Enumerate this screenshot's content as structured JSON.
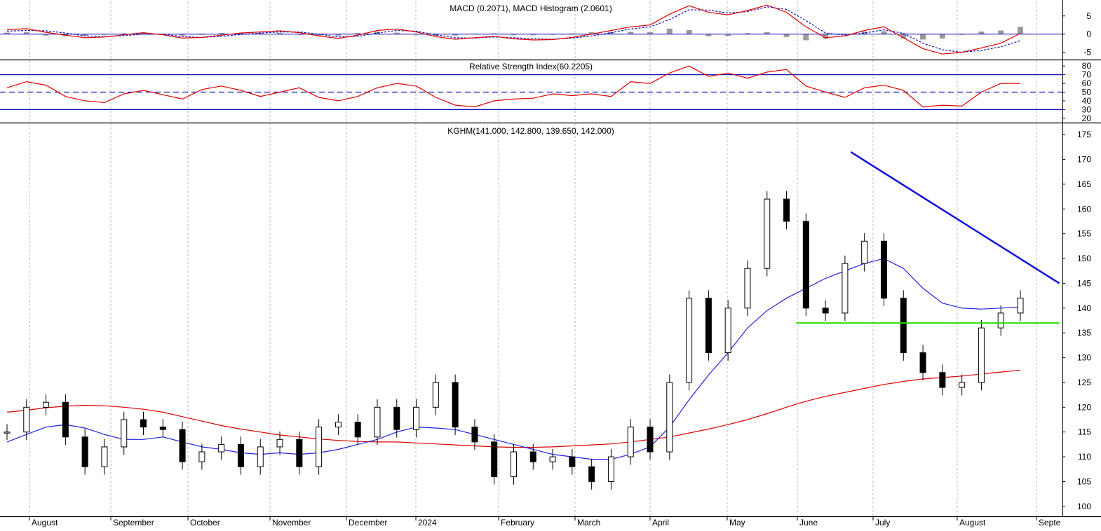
{
  "colors": {
    "background": "#ffffff",
    "frame": "#000000",
    "grid": "#b8b8b8",
    "bull_candle": "#ffffff",
    "bear_candle": "#000000",
    "sma_long": "#e00000",
    "sma_mid": "#2020e0",
    "downtrend_line": "#1010e0",
    "support_line": "#22dd00",
    "rsi_line": "#e00000",
    "rsi_levels": "#1010c0",
    "macd_line": "#e00000",
    "signal_line": "#1010c0",
    "histogram": "#999999"
  },
  "chart_data": [
    {
      "type": "line",
      "panel": "macd",
      "title": "MACD (0.2071), MACD Histogram (2.0601)",
      "y_ticks": [
        "5",
        "0",
        "-5"
      ],
      "ylim": [
        -7,
        9
      ],
      "series": [
        {
          "values": [
            1.2,
            1.5,
            0.5,
            -0.3,
            -1.0,
            -0.8,
            -0.2,
            0.4,
            -0.2,
            -1.1,
            -0.9,
            -0.3,
            0.3,
            0.6,
            0.9,
            0.4,
            -0.5,
            -1.2,
            -0.3,
            1.0,
            1.4,
            0.6,
            -0.7,
            -1.4,
            -1.0,
            -0.6,
            -1.3,
            -1.6,
            -1.5,
            -0.9,
            0.0,
            1.0,
            2.0,
            2.5,
            5.5,
            7.8,
            6.0,
            5.3,
            6.5,
            8.0,
            6.0,
            2.0,
            -1.0,
            -0.5,
            1.0,
            2.0,
            -1.0,
            -4.0,
            -5.5,
            -5.0,
            -3.8,
            -2.5,
            0.2
          ]
        },
        {
          "values": [
            0.8,
            1.0,
            0.9,
            0.3,
            -0.5,
            -0.7,
            -0.4,
            0.0,
            0.0,
            -0.7,
            -0.9,
            -0.6,
            -0.1,
            0.3,
            0.6,
            0.6,
            0.0,
            -0.8,
            -0.6,
            0.3,
            1.0,
            0.8,
            -0.2,
            -1.0,
            -1.1,
            -0.8,
            -1.0,
            -1.3,
            -1.4,
            -1.1,
            -0.5,
            0.4,
            1.4,
            2.0,
            4.0,
            6.7,
            6.6,
            5.8,
            6.2,
            7.5,
            6.8,
            3.7,
            0.3,
            -0.3,
            0.3,
            1.2,
            0.2,
            -2.5,
            -4.3,
            -5.0,
            -4.5,
            -3.5,
            -1.8
          ]
        },
        {
          "values": [
            0.4,
            0.5,
            -0.4,
            -0.6,
            -0.5,
            -0.1,
            0.2,
            0.4,
            -0.2,
            -0.4,
            0.0,
            0.3,
            0.4,
            0.3,
            0.3,
            -0.2,
            -0.5,
            -0.4,
            0.3,
            0.7,
            0.4,
            -0.2,
            -0.5,
            -0.4,
            0.1,
            0.2,
            -0.3,
            -0.3,
            -0.1,
            0.2,
            0.5,
            0.6,
            0.6,
            0.5,
            1.5,
            1.1,
            -0.6,
            -0.5,
            0.3,
            0.5,
            -0.8,
            -1.7,
            -1.3,
            -0.2,
            0.7,
            0.8,
            -1.2,
            -1.5,
            -1.2,
            0.0,
            0.7,
            1.0,
            2.0
          ]
        }
      ]
    },
    {
      "type": "line",
      "panel": "rsi",
      "title": "Relative Strength Index(60.2205)",
      "y_ticks": [
        "80",
        "70",
        "60",
        "50",
        "40",
        "30",
        "20"
      ],
      "ylim": [
        15,
        85
      ],
      "levels": [
        70,
        50,
        30
      ],
      "series": [
        {
          "values": [
            55,
            62,
            58,
            45,
            40,
            38,
            48,
            52,
            47,
            42,
            53,
            57,
            52,
            45,
            50,
            55,
            44,
            40,
            45,
            55,
            60,
            57,
            44,
            35,
            33,
            40,
            42,
            43,
            48,
            46,
            48,
            45,
            62,
            60,
            72,
            80,
            68,
            72,
            66,
            73,
            76,
            57,
            50,
            44,
            55,
            58,
            52,
            33,
            35,
            34,
            50,
            60,
            60
          ]
        }
      ]
    },
    {
      "type": "candlestick",
      "panel": "price",
      "title": "KGHM(141.000, 142.800, 139.650, 142.000)",
      "y_ticks": [
        "175",
        "170",
        "165",
        "160",
        "155",
        "150",
        "145",
        "140",
        "135",
        "130",
        "125",
        "120",
        "115",
        "110",
        "105",
        "100"
      ],
      "ylim": [
        98,
        177
      ],
      "x_labels": [
        "August",
        "September",
        "October",
        "November",
        "December",
        "2024",
        "February",
        "March",
        "April",
        "May",
        "June",
        "July",
        "August",
        "Septe"
      ],
      "closes": [
        115.0,
        120.0,
        121.0,
        114.0,
        108.0,
        112.0,
        117.5,
        116.0,
        115.5,
        109.0,
        111.0,
        112.5,
        108.0,
        112.0,
        113.5,
        108.0,
        116.0,
        117.0,
        114.0,
        120.0,
        115.5,
        120.0,
        125.0,
        116.0,
        113.0,
        106.0,
        111.0,
        109.0,
        110.0,
        108.0,
        105.0,
        110.0,
        116.0,
        111.0,
        125.0,
        142.0,
        131.0,
        140.0,
        148.0,
        162.0,
        157.5,
        140.0,
        139.0,
        149.0,
        153.5,
        142.0,
        131.0,
        127.0,
        124.0,
        125.0,
        136.0,
        139.0,
        142.0
      ],
      "series": [
        {
          "name": "",
          "values": [
            119.0,
            119.4,
            119.9,
            120.2,
            120.4,
            120.3,
            120.0,
            119.6,
            119.0,
            118.1,
            117.2,
            116.3,
            115.6,
            115.0,
            114.4,
            114.0,
            113.6,
            113.3,
            113.1,
            113.0,
            113.0,
            112.8,
            112.6,
            112.4,
            112.2,
            112.0,
            111.9,
            111.9,
            112.0,
            112.2,
            112.4,
            112.6,
            113.0,
            113.5,
            114.0,
            114.8,
            115.6,
            116.5,
            117.5,
            118.7,
            120.0,
            121.2,
            122.2,
            123.0,
            123.8,
            124.6,
            125.2,
            125.7,
            126.0,
            126.3,
            126.7,
            127.1,
            127.5
          ]
        },
        {
          "name": "",
          "values": [
            113.0,
            114.5,
            116.0,
            116.5,
            115.8,
            114.5,
            113.5,
            113.5,
            114.0,
            113.0,
            112.0,
            111.5,
            110.8,
            110.5,
            110.8,
            110.5,
            110.8,
            111.5,
            112.5,
            113.5,
            115.0,
            116.0,
            115.8,
            115.5,
            114.5,
            113.5,
            112.5,
            111.5,
            110.5,
            110.0,
            109.5,
            109.5,
            110.5,
            112.0,
            116.0,
            121.5,
            126.5,
            131.0,
            136.0,
            139.5,
            142.0,
            144.0,
            146.0,
            147.5,
            149.0,
            150.0,
            148.0,
            144.0,
            141.0,
            140.0,
            139.8,
            140.0,
            140.2
          ]
        }
      ],
      "trendlines": [
        {
          "from": [
            43.3,
            171.5
          ],
          "to": [
            54.0,
            145.0
          ]
        },
        {
          "from": [
            40.5,
            137.0
          ],
          "to": [
            54.0,
            137.0
          ]
        }
      ]
    }
  ]
}
